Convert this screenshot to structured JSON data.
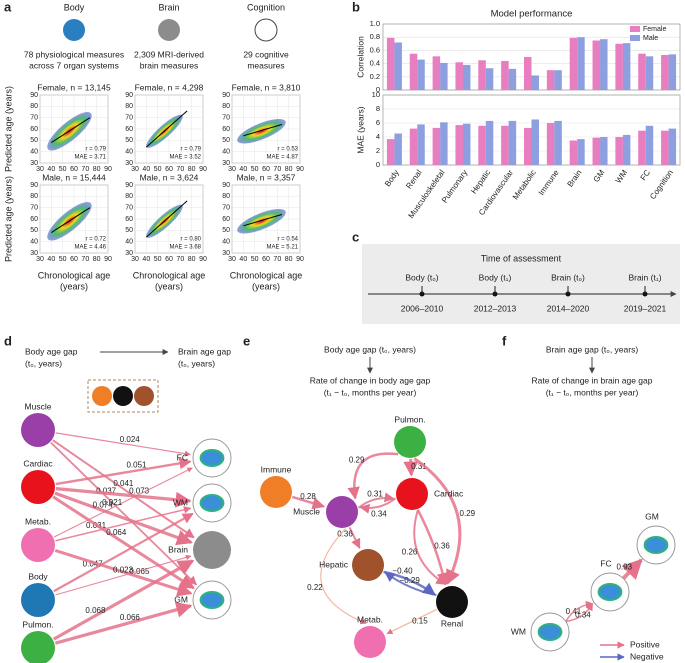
{
  "panel_a": {
    "label": "a",
    "columns": [
      {
        "title": "Body",
        "description": [
          "78 physiological measures",
          "across 7 organ systems"
        ],
        "plots": [
          {
            "title": "Female, n = 13,145",
            "r": "r = 0.79",
            "mae": "MAE = 3.71"
          },
          {
            "title": "Male, n = 15,444",
            "r": "r = 0.72",
            "mae": "MAE = 4.46"
          }
        ]
      },
      {
        "title": "Brain",
        "description": [
          "2,309 MRI-derived",
          "brain measures"
        ],
        "plots": [
          {
            "title": "Female, n = 4,298",
            "r": "r = 0.79",
            "mae": "MAE = 3.52"
          },
          {
            "title": "Male, n = 3,624",
            "r": "r = 0.80",
            "mae": "MAE = 3.68"
          }
        ]
      },
      {
        "title": "Cognition",
        "description": [
          "29 cognitive",
          "measures"
        ],
        "plots": [
          {
            "title": "Female, n = 3,810",
            "r": "r = 0.53",
            "mae": "MAE = 4.87"
          },
          {
            "title": "Male, n = 3,357",
            "r": "r = 0.54",
            "mae": "MAE = 5.21"
          }
        ]
      }
    ],
    "xlabel": [
      "Chronological age",
      "(years)"
    ],
    "ylabel": "Predicted age (years)",
    "xlim": [
      30,
      90
    ],
    "ylim": [
      30,
      90
    ],
    "xticks": [
      30,
      40,
      50,
      60,
      70,
      80,
      90
    ],
    "yticks": [
      30,
      40,
      50,
      60,
      70,
      80,
      90
    ]
  },
  "chart_data": [
    {
      "type": "bar",
      "panel_label": "b",
      "title": "Model performance",
      "ylabel": "Correlation",
      "legend": "upper right",
      "grid": true,
      "ylim": [
        0,
        1
      ],
      "yticks": [
        0,
        0.2,
        0.4,
        0.6,
        0.8,
        {
          "value": 1,
          "label": "1.0"
        }
      ],
      "series": [
        {
          "name": "Female",
          "color": "#e87dbf",
          "values": [
            0.79,
            0.55,
            0.51,
            0.42,
            0.45,
            0.44,
            0.5,
            0.3,
            0.79,
            0.75,
            0.7,
            0.55,
            0.53
          ]
        },
        {
          "name": "Male",
          "color": "#8e9fe0",
          "values": [
            0.72,
            0.46,
            0.41,
            0.38,
            0.33,
            0.32,
            0.22,
            0.3,
            0.8,
            0.77,
            0.71,
            0.51,
            0.54
          ]
        }
      ]
    },
    {
      "type": "bar",
      "ylabel": "MAE (years)",
      "grid": true,
      "ylim": [
        0,
        10
      ],
      "yticks": [
        0,
        2,
        4,
        6,
        8,
        10
      ],
      "categories": [
        "Body",
        "Renal",
        "Musculoskeletal",
        "Pulmonary",
        "Hepatic",
        "Cardiovascular",
        "Metabolic",
        "Immune",
        "Brain",
        "GM",
        "WM",
        "FC",
        "Cognition"
      ],
      "series": [
        {
          "color": "#e87dbf",
          "values": [
            3.7,
            5.2,
            5.3,
            5.7,
            5.6,
            5.6,
            5.3,
            6.0,
            3.5,
            3.9,
            4.0,
            4.9,
            4.9
          ]
        },
        {
          "color": "#8e9fe0",
          "values": [
            4.5,
            5.8,
            6.1,
            5.9,
            6.3,
            6.3,
            6.5,
            6.3,
            3.7,
            4.0,
            4.3,
            5.6,
            5.2
          ]
        }
      ]
    }
  ],
  "panel_c": {
    "label": "c",
    "title": "Time of assessment",
    "events": [
      {
        "label": "Body (t₀)",
        "period": "2006–2010"
      },
      {
        "label": "Body (t₁)",
        "period": "2012–2013"
      },
      {
        "label": "Brain (t₀)",
        "period": "2014–2020"
      },
      {
        "label": "Brain (t₁)",
        "period": "2019–2021"
      }
    ]
  },
  "panel_d": {
    "label": "d",
    "source": [
      "Body age gap",
      "(t₀, years)"
    ],
    "target": [
      "Brain age gap",
      "(t₀, years)"
    ],
    "nodes": [
      "Muscle",
      "Cardiac",
      "Metab.",
      "Body",
      "Pulmon.",
      "FC",
      "WM",
      "Brain",
      "GM"
    ],
    "edges": [
      "0.024",
      "0.041",
      "0.051",
      "0.037",
      "0.073",
      "0.074",
      "0.021",
      "0.031",
      "0.064",
      "0.047",
      "0.065",
      "0.023",
      "0.068",
      "0.066"
    ]
  },
  "panel_e": {
    "label": "e",
    "header": [
      "Body age gap (t₀, years)",
      "Rate of change in body age gap",
      "(t₁ − t₀, months per year)"
    ],
    "nodes": [
      "Pulmon.",
      "Immune",
      "Cardiac",
      "Muscle",
      "Hepatic",
      "Renal",
      "Metab."
    ],
    "edges": [
      "0.31",
      "0.29",
      "0.29",
      "0.28",
      "0.31",
      "0.34",
      "0.36",
      "0.26",
      "0.36",
      "−0.40",
      "−0.29",
      "0.15",
      "0.22"
    ]
  },
  "panel_f": {
    "label": "f",
    "header": [
      "Brain age gap (t₀, years)",
      "Rate of change in brain age gap",
      "(t₁ − t₀, months per year)"
    ],
    "nodes": [
      "GM",
      "FC",
      "WM"
    ],
    "edges": [
      "0.93",
      "0.41",
      "0.34"
    ],
    "legend": [
      "Positive",
      "Negative"
    ]
  }
}
